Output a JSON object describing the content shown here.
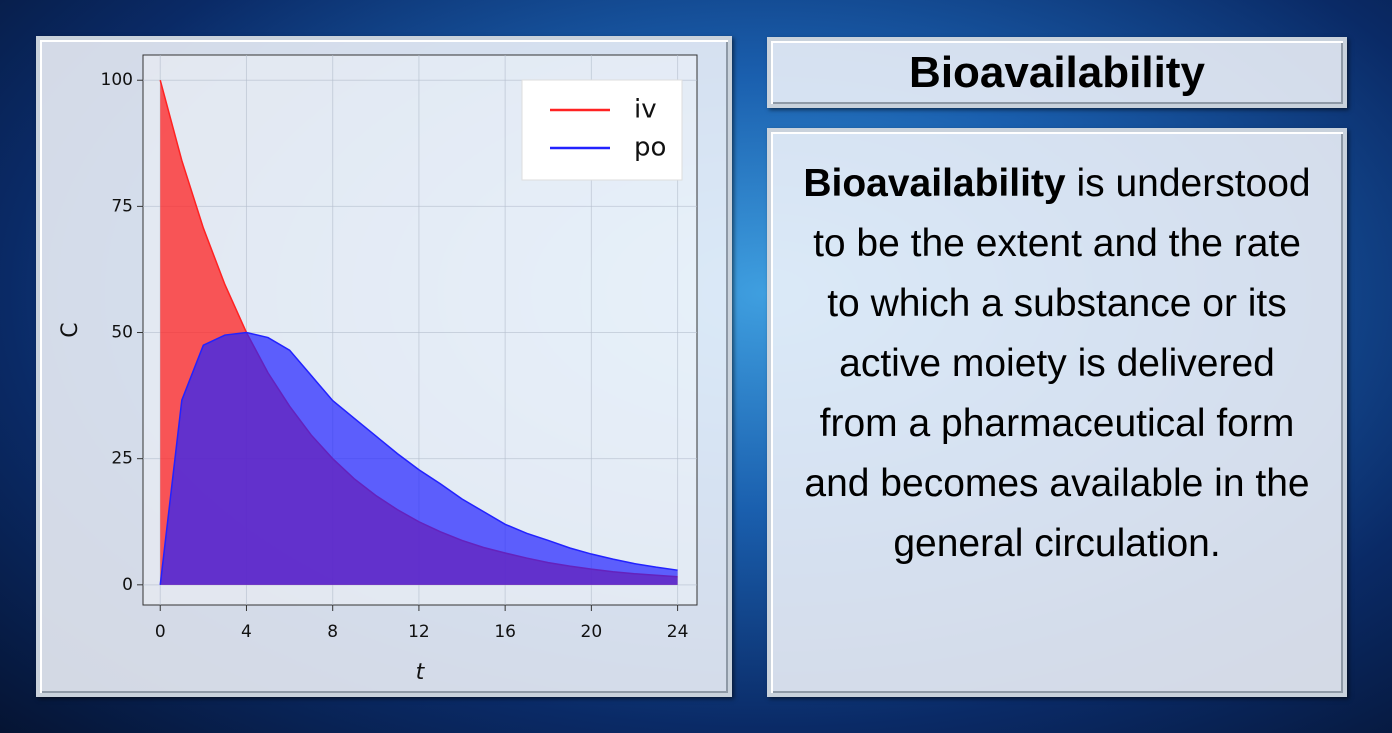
{
  "chart_data": {
    "type": "area",
    "x": [
      0,
      1,
      2,
      3,
      4,
      5,
      6,
      7,
      8,
      9,
      10,
      11,
      12,
      13,
      14,
      15,
      16,
      17,
      18,
      19,
      20,
      21,
      22,
      23,
      24
    ],
    "series": [
      {
        "name": "iv",
        "color": "#ff2222",
        "values": [
          100,
          84.1,
          70.7,
          59.5,
          50,
          42,
          35.4,
          29.7,
          25,
          21,
          17.7,
          14.9,
          12.5,
          10.5,
          8.8,
          7.4,
          6.3,
          5.3,
          4.4,
          3.7,
          3.1,
          2.6,
          2.2,
          1.9,
          1.6
        ]
      },
      {
        "name": "po",
        "color": "#2222ff",
        "values": [
          0,
          36.6,
          47.5,
          49.5,
          50,
          49,
          46.5,
          41.5,
          36.5,
          33,
          29.5,
          26,
          22.8,
          20,
          17,
          14.5,
          12,
          10.2,
          8.8,
          7.3,
          6.1,
          5.1,
          4.2,
          3.5,
          2.9
        ]
      }
    ],
    "xlabel": "t",
    "ylabel": "C",
    "xlim": [
      -0.8,
      24.9
    ],
    "ylim": [
      -4,
      105
    ],
    "xticks": [
      0,
      4,
      8,
      12,
      16,
      20,
      24
    ],
    "yticks": [
      0,
      25,
      50,
      75,
      100
    ],
    "grid": true,
    "legend": "upper-right"
  },
  "panel": {
    "title": "Bioavailability",
    "body_term": "Bioavailability",
    "body_text": " is understood to be the extent and the rate to which a substance or its active moiety is delivered from a pharmaceutical form and becomes available in the general circulation."
  }
}
